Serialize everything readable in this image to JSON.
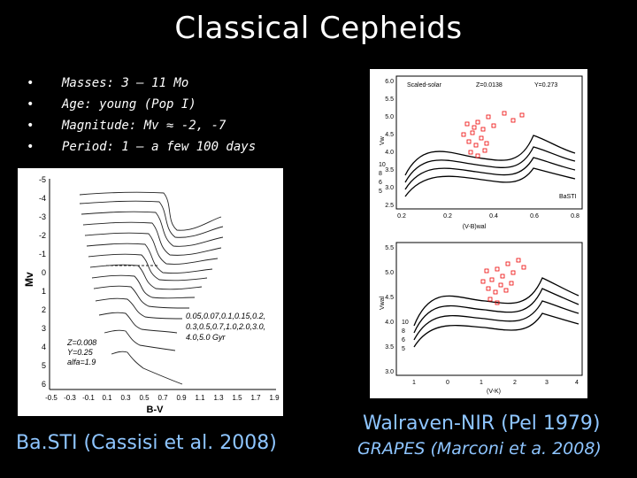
{
  "slide": {
    "title": "Classical Cepheids",
    "bullets": [
      {
        "marker": "•",
        "text": "Masses: 3 – 11 Mo"
      },
      {
        "marker": "•",
        "text": "Age: young (Pop I)"
      },
      {
        "marker": "•",
        "text": "Magnitude: Mv ≈ -2, -7"
      },
      {
        "marker": "•",
        "text": "Period: 1 – a few 100 days"
      }
    ],
    "captions": {
      "basti": "Ba.STI (Cassisi et al. 2008)",
      "walraven": "Walraven-NIR (Pel 1979)",
      "grapes": "GRAPES (Marconi et a. 2008)"
    }
  },
  "cmd": {
    "ylabel": "Mv",
    "xlabel": "B-V",
    "yticks": [
      "-5",
      "-4",
      "-3",
      "-2",
      "-1",
      "0",
      "1",
      "2",
      "3",
      "4",
      "5",
      "6"
    ],
    "xticks": [
      "-0.5",
      "-0.3",
      "-0.1",
      "0.1",
      "0.3",
      "0.5",
      "0.7",
      "0.9",
      "1.1",
      "1.3",
      "1.5",
      "1.7",
      "1.9"
    ],
    "params": [
      "Z=0.008",
      "Y=0.25",
      "alfa=1.9"
    ],
    "ages": [
      "0.05,0.07,0.1,0.15,0.2,",
      "0.3,0.5,0.7,1.0,2.0,3.0,",
      "4.0,5.0  Gyr"
    ]
  },
  "grapes_top": {
    "labels": [
      "Scaled-solar",
      "Z=0.0138",
      "Y=0.273"
    ],
    "ylabel": "Vw",
    "xlabel": "(V-B)wal",
    "yticks": [
      "6.0",
      "5.5",
      "5.0",
      "4.5",
      "4.0",
      "3.5",
      "3.0",
      "2.5"
    ],
    "xticks": [
      "0.2",
      "0.2",
      "0.4",
      "0.6",
      "0.8"
    ],
    "masses": [
      "10",
      "8",
      "6",
      "5"
    ],
    "tag": "BaSTI"
  },
  "grapes_bottom": {
    "ylabel": "Vwal",
    "xlabel": "(V-K)",
    "yticks": [
      "5.5",
      "5.0",
      "4.5",
      "4.0",
      "3.5",
      "3.0"
    ],
    "xticks": [
      "1",
      "0",
      "1",
      "2",
      "3",
      "4"
    ],
    "masses": [
      "10",
      "8",
      "6",
      "5"
    ]
  }
}
